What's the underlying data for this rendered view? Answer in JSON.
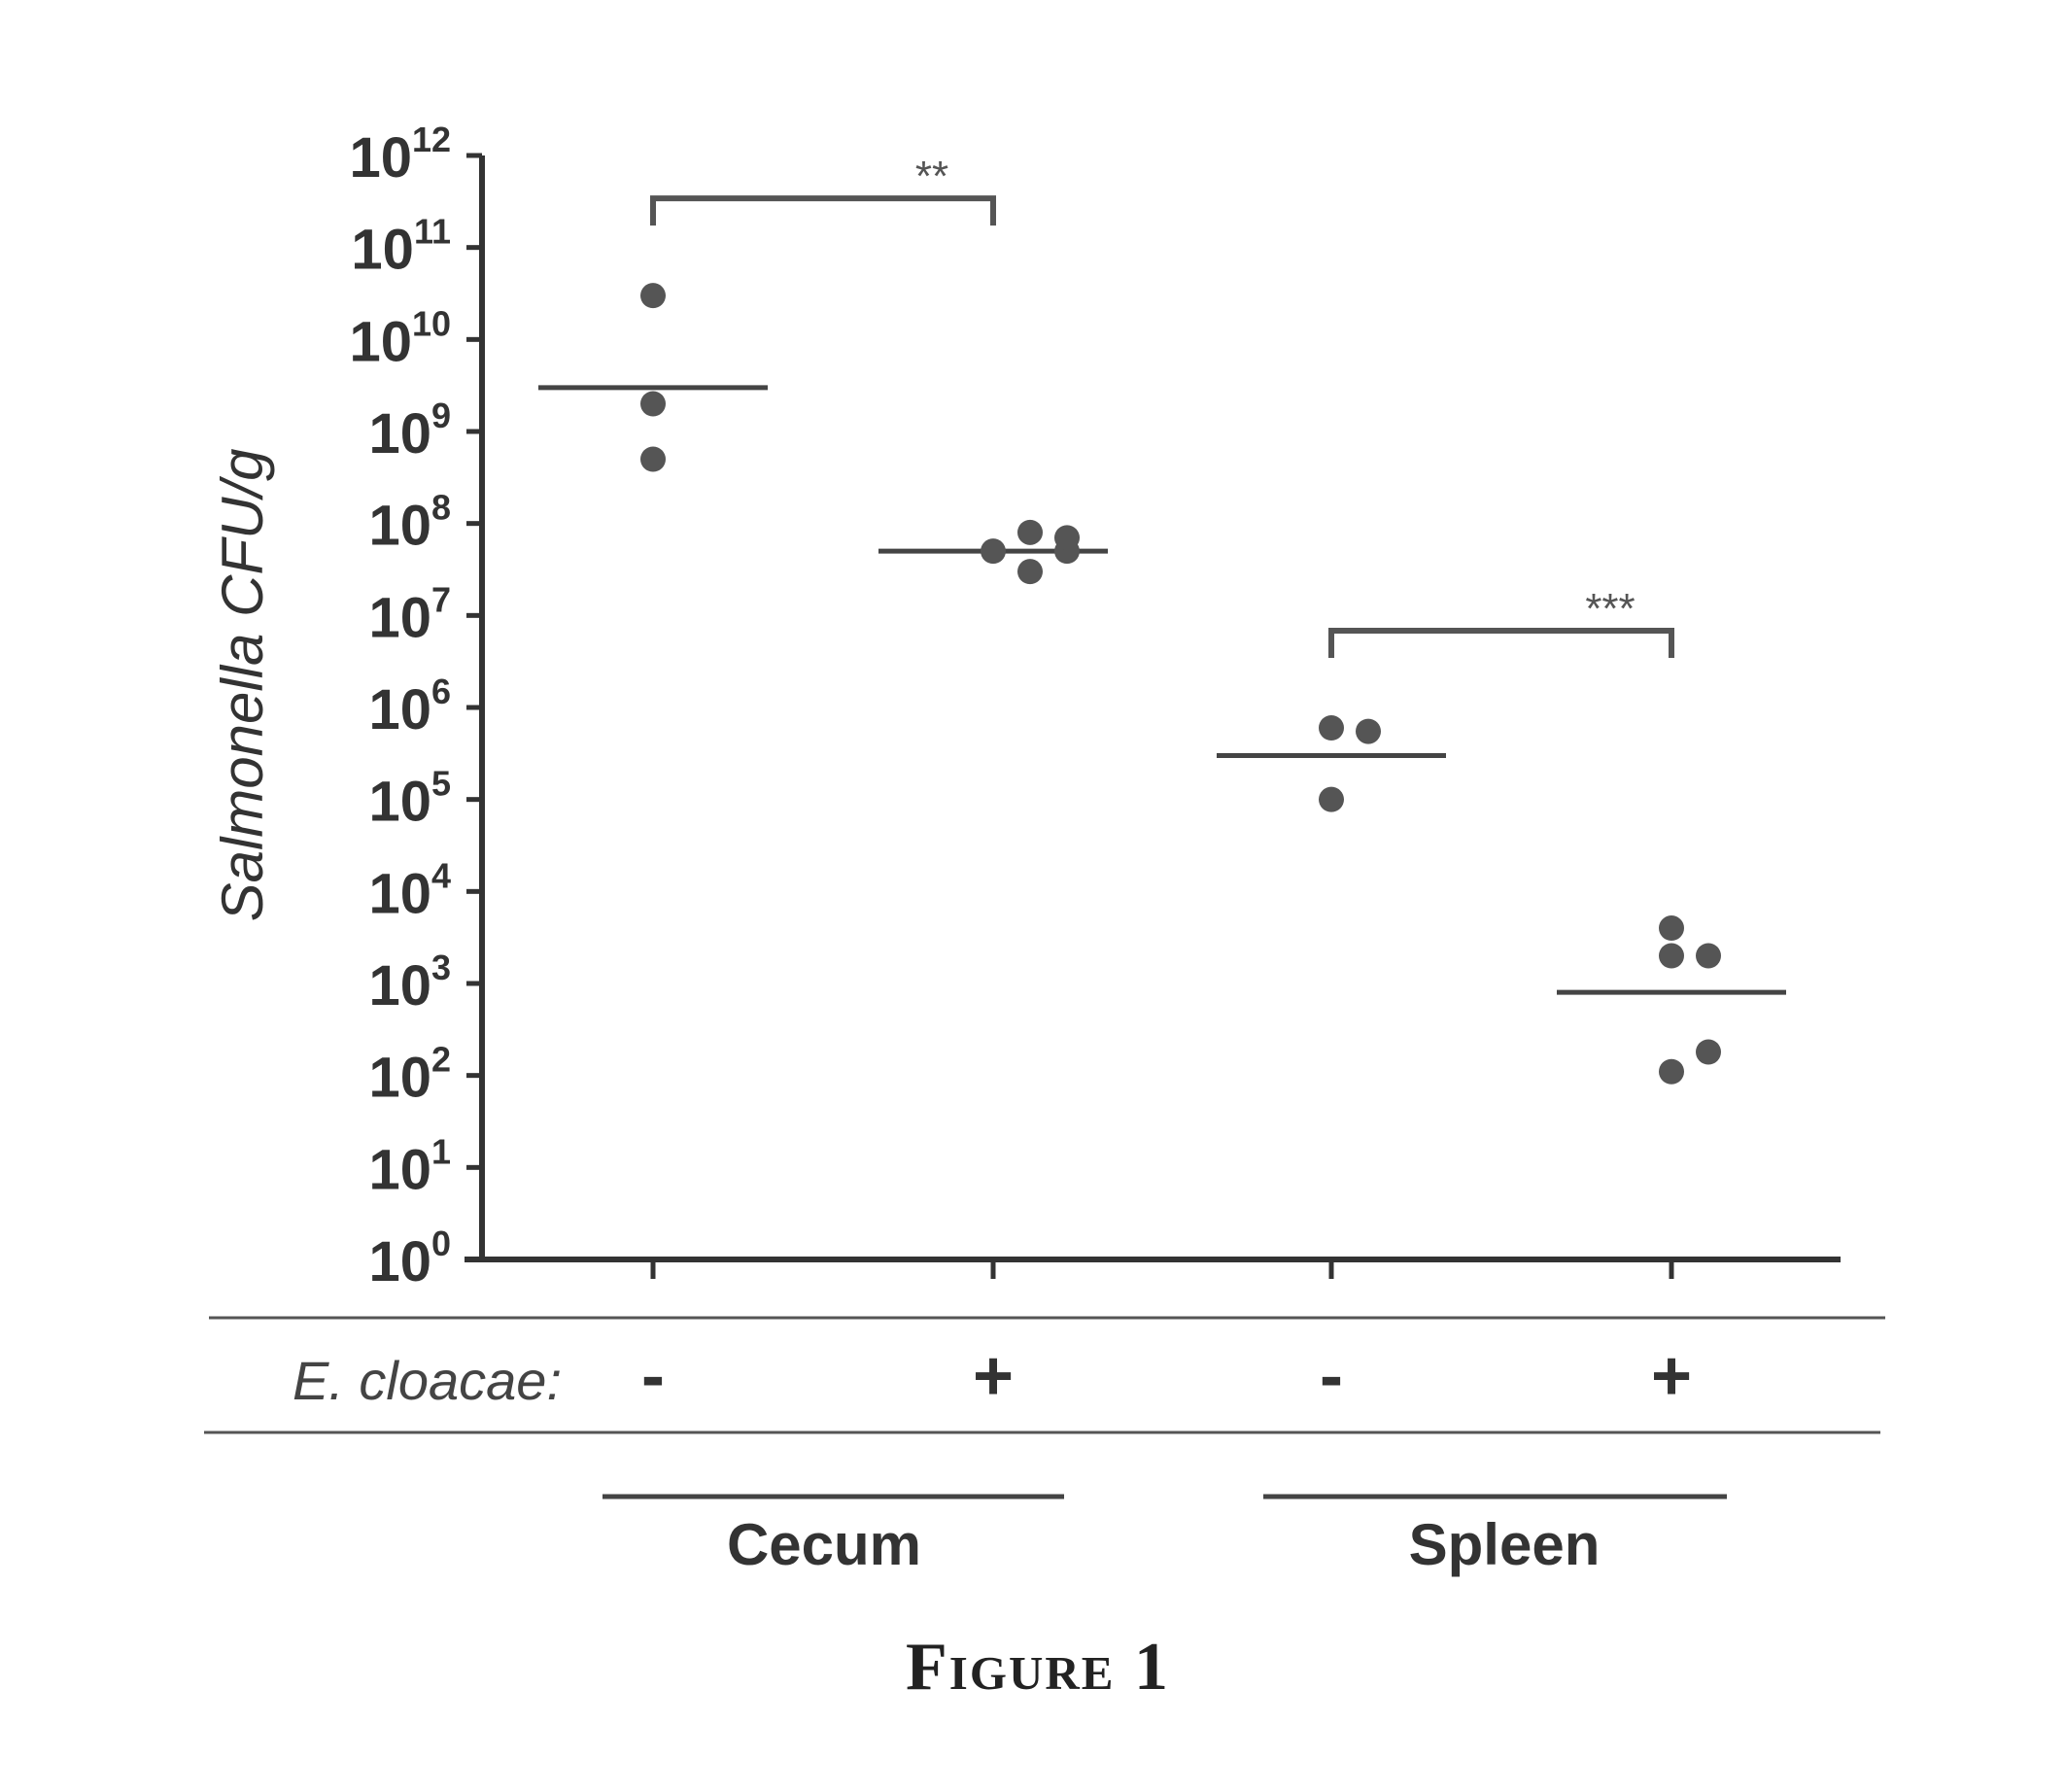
{
  "chart_data": {
    "type": "scatter",
    "ylabel": "Salmonella CFU/g",
    "yscale": "log",
    "ylim": [
      1,
      1000000000000
    ],
    "y_tick_exponents": [
      0,
      1,
      2,
      3,
      4,
      5,
      6,
      7,
      8,
      9,
      10,
      11,
      12
    ],
    "y_tick_base": "10",
    "row_label": "E. cloacae:",
    "conditions": [
      "-",
      "+",
      "-",
      "+"
    ],
    "groups": [
      {
        "name": "Cecum",
        "columns": [
          0,
          1
        ]
      },
      {
        "name": "Spleen",
        "columns": [
          2,
          3
        ]
      }
    ],
    "series": [
      {
        "column": 0,
        "values": [
          30000000000,
          2000000000,
          500000000
        ],
        "median": 3000000000
      },
      {
        "column": 1,
        "values": [
          50000000,
          80000000,
          30000000,
          50000000,
          70000000
        ],
        "median": 50000000
      },
      {
        "column": 2,
        "values": [
          600000,
          550000,
          100000
        ],
        "median": 300000
      },
      {
        "column": 3,
        "values": [
          2000,
          2000,
          4000,
          110,
          180
        ],
        "median": 800
      }
    ],
    "significance": [
      {
        "from_column": 0,
        "to_column": 1,
        "label": "**"
      },
      {
        "from_column": 2,
        "to_column": 3,
        "label": "***"
      }
    ],
    "grid": false,
    "legend": "none"
  },
  "caption": "Figure 1",
  "colors": {
    "ink": "#333333",
    "points": "#555555"
  }
}
